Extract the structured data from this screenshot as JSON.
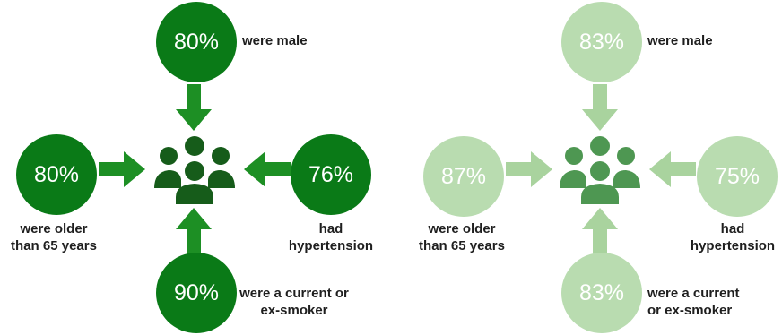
{
  "colors": {
    "dark_circle": "#0a7a17",
    "dark_arrow": "#1d8f24",
    "dark_people": "#165c1a",
    "light_circle": "#b9dcb0",
    "light_arrow": "#a9d39e",
    "light_people": "#4e9752",
    "label_text": "#1f1f1f"
  },
  "people_icon": "group-of-people-icon",
  "arrow_icon": "arrow-icon",
  "panels": [
    {
      "top": {
        "value": "80%",
        "label": "were male"
      },
      "left": {
        "value": "80%",
        "label_line1": "were older",
        "label_line2": "than 65 years"
      },
      "right": {
        "value": "76%",
        "label_line1": "had",
        "label_line2": "hypertension"
      },
      "bottom": {
        "value": "90%",
        "label_line1": "were a current or",
        "label_line2": "ex-smoker"
      }
    },
    {
      "top": {
        "value": "83%",
        "label": "were male"
      },
      "left": {
        "value": "87%",
        "label_line1": "were older",
        "label_line2": "than 65 years"
      },
      "right": {
        "value": "75%",
        "label_line1": "had",
        "label_line2": "hypertension"
      },
      "bottom": {
        "value": "83%",
        "label_line1": "were a current",
        "label_line2": "or ex-smoker"
      }
    }
  ]
}
